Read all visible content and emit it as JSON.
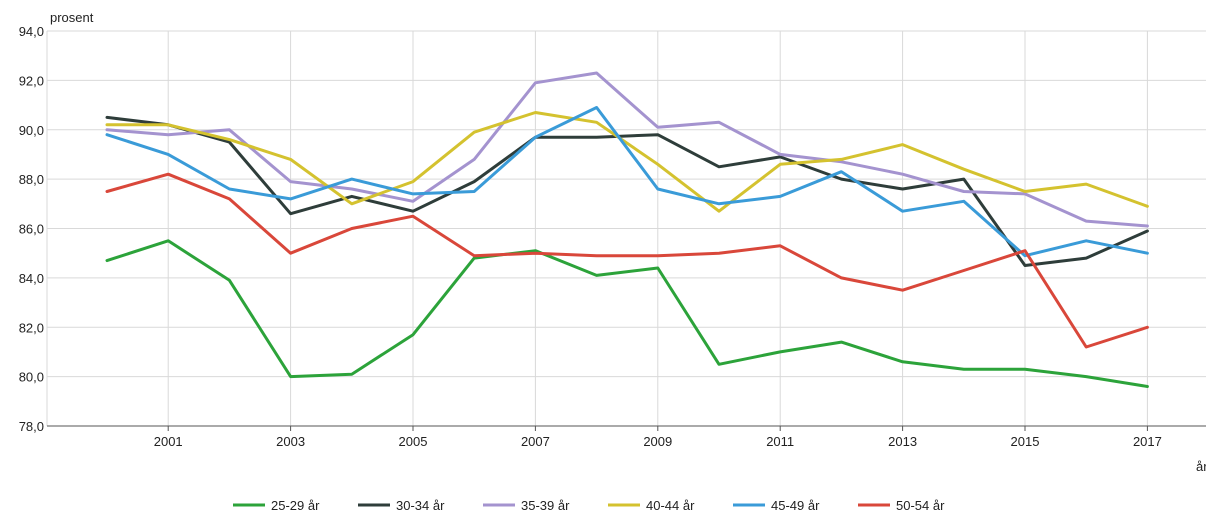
{
  "chart_data": {
    "type": "line",
    "xlabel": "år",
    "ylabel": "prosent",
    "ylim": [
      78,
      94
    ],
    "yticks": [
      "78,0",
      "80,0",
      "82,0",
      "84,0",
      "86,0",
      "88,0",
      "90,0",
      "92,0",
      "94,0"
    ],
    "x": [
      2000,
      2001,
      2002,
      2003,
      2004,
      2005,
      2006,
      2007,
      2008,
      2009,
      2010,
      2011,
      2012,
      2013,
      2014,
      2015,
      2016,
      2017
    ],
    "xticks": [
      "2001",
      "2003",
      "2005",
      "2007",
      "2009",
      "2011",
      "2013",
      "2015",
      "2017"
    ],
    "grid": true,
    "legend_position": "bottom",
    "series": [
      {
        "name": "25-29 år",
        "color": "#2ca33a",
        "values": [
          84.7,
          85.5,
          83.9,
          80.0,
          80.1,
          81.7,
          84.8,
          85.1,
          84.1,
          84.4,
          80.5,
          81.0,
          81.4,
          80.6,
          80.3,
          80.3,
          80.0,
          79.6
        ]
      },
      {
        "name": "30-34 år",
        "color": "#2e3d3a",
        "values": [
          90.5,
          90.2,
          89.5,
          86.6,
          87.3,
          86.7,
          87.9,
          89.7,
          89.7,
          89.8,
          88.5,
          88.9,
          88.0,
          87.6,
          88.0,
          84.5,
          84.8,
          85.9
        ]
      },
      {
        "name": "35-39 år",
        "color": "#a493cf",
        "values": [
          90.0,
          89.8,
          90.0,
          87.9,
          87.6,
          87.1,
          88.8,
          91.9,
          92.3,
          90.1,
          90.3,
          89.0,
          88.7,
          88.2,
          87.5,
          87.4,
          86.3,
          86.1
        ]
      },
      {
        "name": "40-44 år",
        "color": "#d4c22f",
        "values": [
          90.2,
          90.2,
          89.6,
          88.8,
          87.0,
          87.9,
          89.9,
          90.7,
          90.3,
          88.6,
          86.7,
          88.6,
          88.8,
          89.4,
          88.4,
          87.5,
          87.8,
          86.9
        ]
      },
      {
        "name": "45-49 år",
        "color": "#3a9bd8",
        "values": [
          89.8,
          89.0,
          87.6,
          87.2,
          88.0,
          87.4,
          87.5,
          89.7,
          90.9,
          87.6,
          87.0,
          87.3,
          88.3,
          86.7,
          87.1,
          84.9,
          85.5,
          85.0
        ]
      },
      {
        "name": "50-54 år",
        "color": "#d9473a",
        "values": [
          87.5,
          88.2,
          87.2,
          85.0,
          86.0,
          86.5,
          84.9,
          85.0,
          84.9,
          84.9,
          85.0,
          85.3,
          84.0,
          83.5,
          84.3,
          85.1,
          81.2,
          82.0
        ]
      }
    ]
  }
}
